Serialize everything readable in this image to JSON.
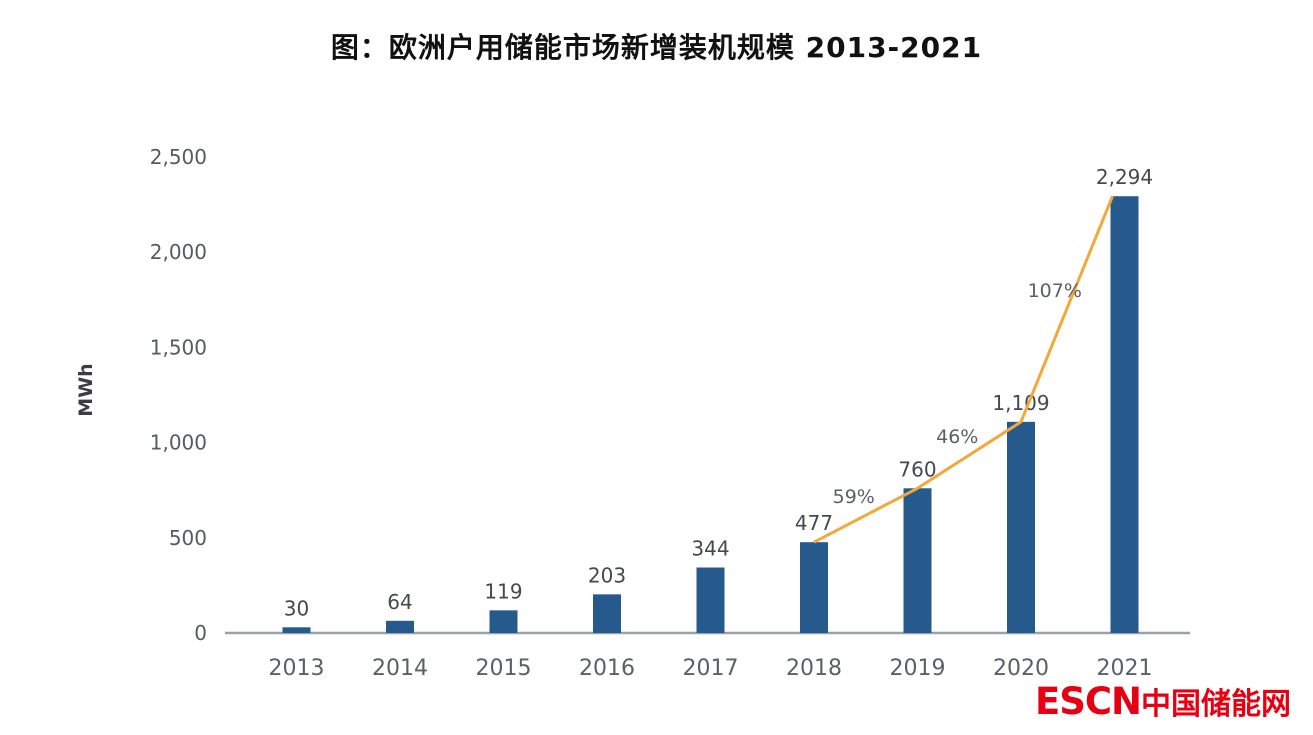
{
  "title": "图：欧洲户用储能市场新增装机规模 2013-2021",
  "logo": {
    "en": "ESCN",
    "cn": "中国储能网",
    "color": "#e60012"
  },
  "chart_data": {
    "type": "bar",
    "title": "图：欧洲户用储能市场新增装机规模 2013-2021",
    "categories": [
      "2013",
      "2014",
      "2015",
      "2016",
      "2017",
      "2018",
      "2019",
      "2020",
      "2021"
    ],
    "values": [
      30,
      64,
      119,
      203,
      344,
      477,
      760,
      1109,
      2294
    ],
    "bar_labels": [
      "30",
      "64",
      "119",
      "203",
      "344",
      "477",
      "760",
      "1,109",
      "2,294"
    ],
    "xlabel": "",
    "ylabel": "MWh",
    "ylim": [
      0,
      2500
    ],
    "yticks": [
      0,
      500,
      1000,
      1500,
      2000,
      2500
    ],
    "ytick_labels": [
      "0",
      "500",
      "1,000",
      "1,500",
      "2,000",
      "2,500"
    ],
    "grid": false,
    "legend": "none",
    "line_overlay": {
      "type": "line",
      "x": [
        "2018",
        "2019",
        "2020",
        "2021"
      ],
      "values": [
        477,
        760,
        1109,
        2294
      ],
      "labels": [
        "59%",
        "46%",
        "107%"
      ]
    },
    "colors": {
      "bar": "#265a8c",
      "line": "#f3a83b",
      "axis": "#98a2ae",
      "tick_text": "#565b63",
      "value_text": "#45494f"
    }
  }
}
